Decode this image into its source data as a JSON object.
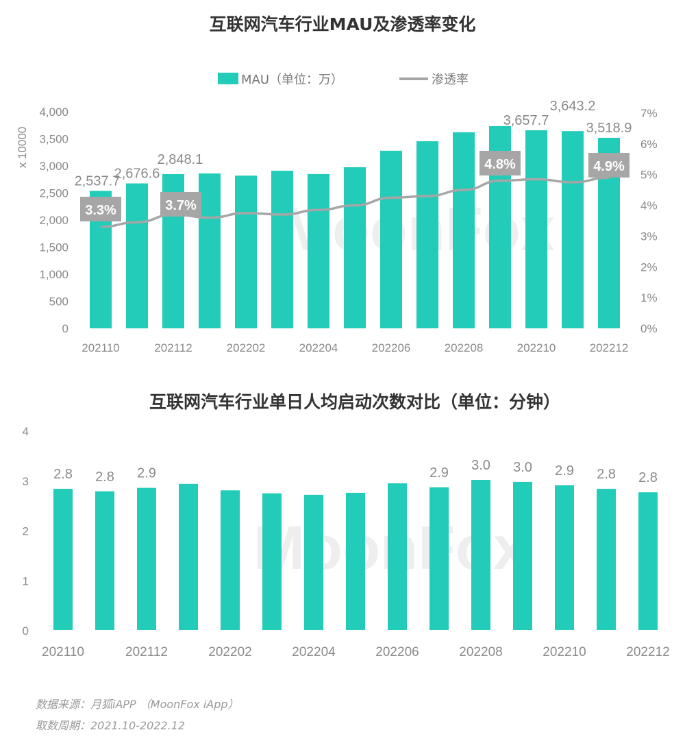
{
  "watermark": "MoonFox",
  "colors": {
    "bar": "#22ccb8",
    "line": "#a6a6a6",
    "label_box": "#a6a6a6",
    "text": "#8a8a8a"
  },
  "chart_data": [
    {
      "type": "bar+line",
      "title": "互联网汽车行业MAU及渗透率变化",
      "ylabel": "x 10000",
      "ylim": [
        0,
        4000
      ],
      "y_ticks": [
        "0",
        "500",
        "1,000",
        "1,500",
        "2,000",
        "2,500",
        "3,000",
        "3,500",
        "4,000"
      ],
      "y2lim": [
        0,
        7
      ],
      "y2_ticks": [
        "0%",
        "1%",
        "2%",
        "3%",
        "4%",
        "5%",
        "6%",
        "7%"
      ],
      "legend": {
        "position": "top",
        "bar_name": "MAU（单位：万）",
        "line_name": "渗透率"
      },
      "categories": [
        "202110",
        "202111",
        "202112",
        "202201",
        "202202",
        "202203",
        "202204",
        "202205",
        "202206",
        "202207",
        "202208",
        "202209",
        "202210",
        "202211",
        "202212"
      ],
      "x_tick_labels": [
        "202110",
        "202112",
        "202202",
        "202204",
        "202206",
        "202208",
        "202210",
        "202212"
      ],
      "series": [
        {
          "name": "MAU（单位：万）",
          "kind": "bar",
          "values": [
            2537.7,
            2676.6,
            2848.1,
            2860,
            2820,
            2910,
            2850,
            2975,
            3280,
            3455,
            3620,
            3735,
            3657.7,
            3643.2,
            3518.9
          ],
          "labels": [
            "2,537.7",
            "2,676.6",
            "2,848.1",
            "",
            "",
            "",
            "",
            "",
            "",
            "",
            "",
            "",
            "3,657.7",
            "3,643.2",
            "3,518.9"
          ]
        },
        {
          "name": "渗透率",
          "kind": "line",
          "values": [
            3.3,
            3.45,
            3.7,
            3.6,
            3.75,
            3.7,
            3.85,
            4.0,
            4.25,
            4.3,
            4.5,
            4.8,
            4.85,
            4.75,
            4.9
          ],
          "labels": [
            "3.3%",
            "",
            "3.7%",
            "",
            "",
            "",
            "",
            "",
            "",
            "",
            "",
            "4.8%",
            "",
            "",
            "4.9%"
          ]
        }
      ]
    },
    {
      "type": "bar",
      "title": "互联网汽车行业单日人均启动次数对比（单位：分钟）",
      "ylim": [
        0,
        4
      ],
      "y_ticks": [
        "0",
        "1",
        "2",
        "3",
        "4"
      ],
      "categories": [
        "202110",
        "202111",
        "202112",
        "202201",
        "202202",
        "202203",
        "202204",
        "202205",
        "202206",
        "202207",
        "202208",
        "202209",
        "202210",
        "202211",
        "202212"
      ],
      "x_tick_labels": [
        "202110",
        "202112",
        "202202",
        "202204",
        "202206",
        "202208",
        "202210",
        "202212"
      ],
      "values": [
        2.83,
        2.78,
        2.85,
        2.93,
        2.8,
        2.74,
        2.71,
        2.75,
        2.94,
        2.86,
        3.01,
        2.97,
        2.9,
        2.83,
        2.76
      ],
      "labels": [
        "2.8",
        "2.8",
        "2.9",
        "",
        "",
        "",
        "",
        "",
        "",
        "2.9",
        "3.0",
        "3.0",
        "2.9",
        "2.8",
        "2.8"
      ]
    }
  ],
  "footer": {
    "source": "数据来源：月狐iAPP （MoonFox iApp）",
    "period": "取数周期：2021.10-2022.12"
  }
}
